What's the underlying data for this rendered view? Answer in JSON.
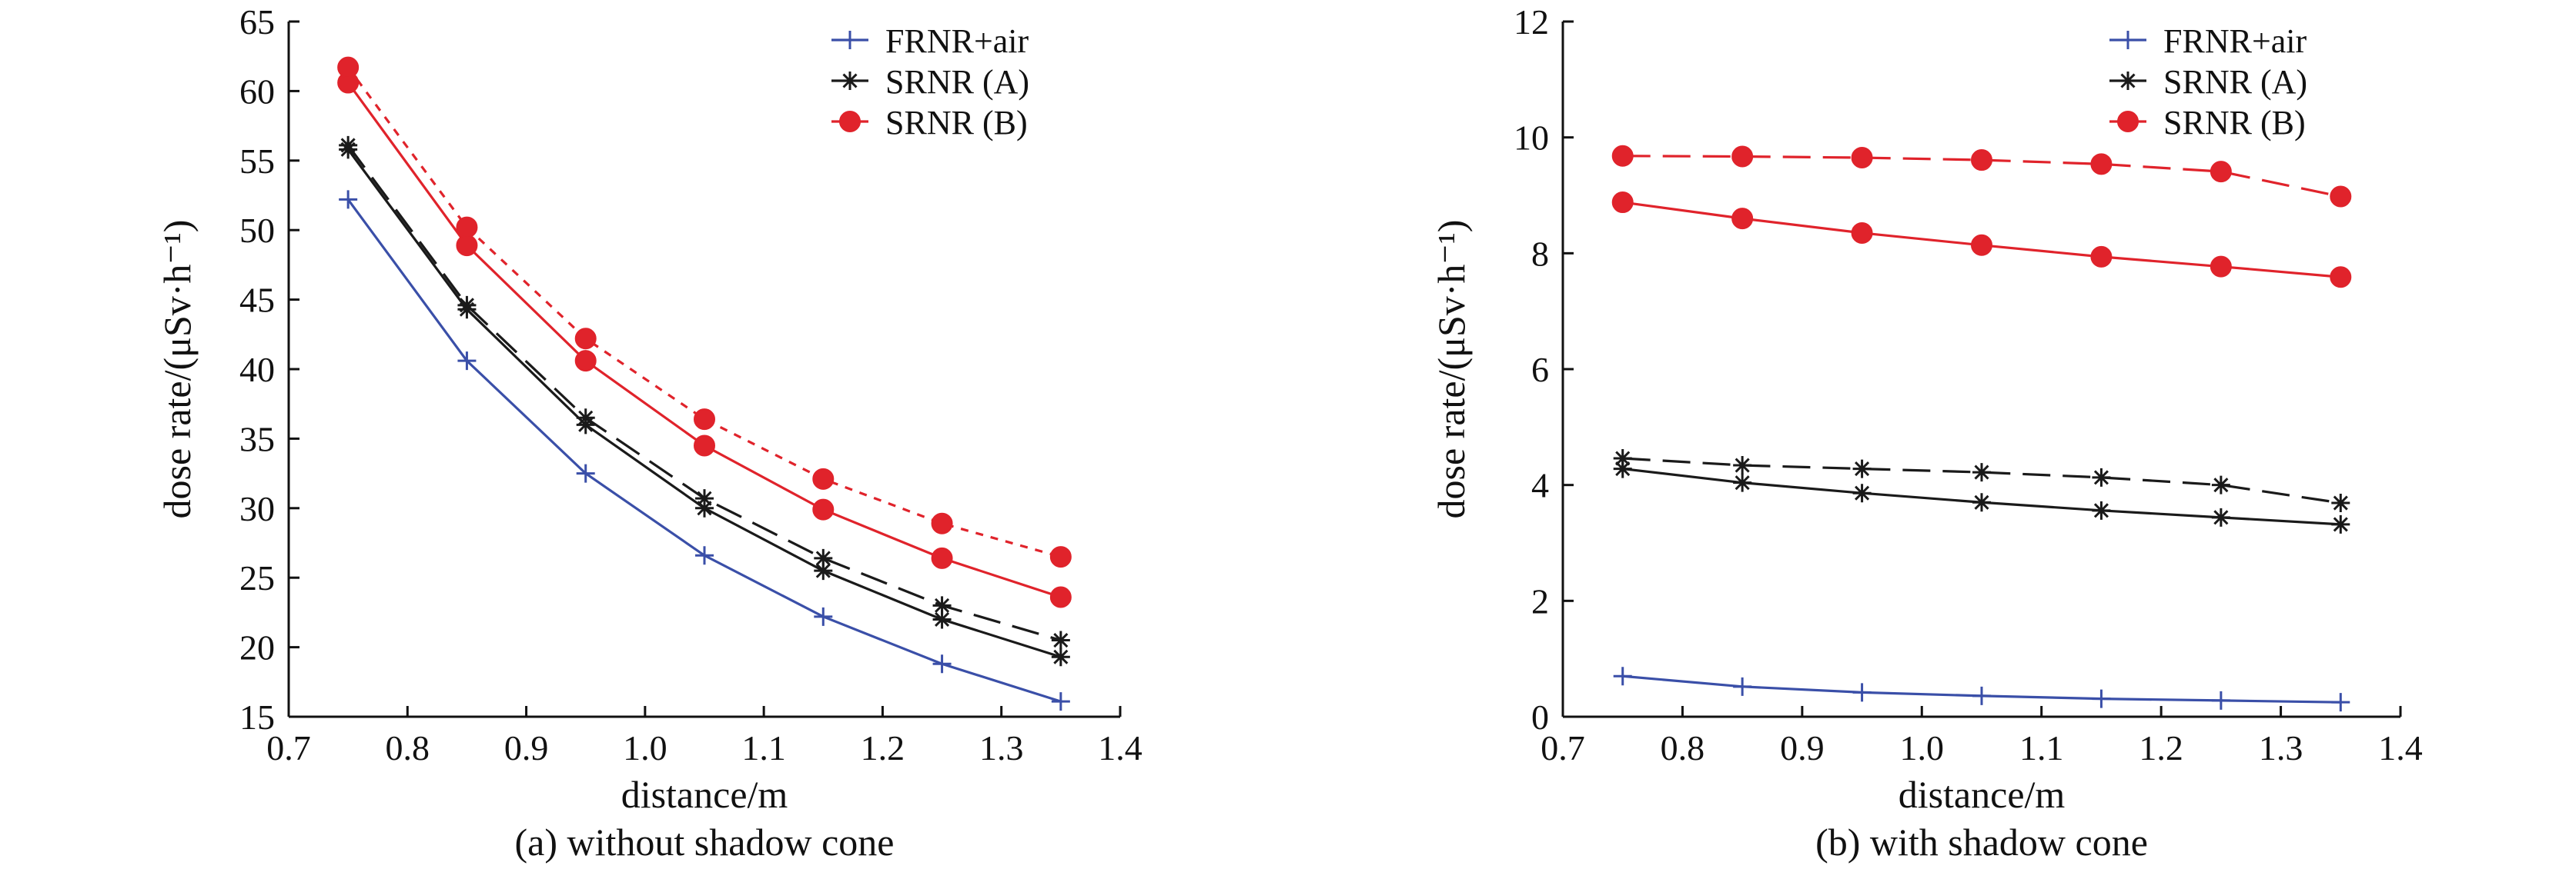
{
  "chart_data": [
    {
      "type": "line",
      "caption": "(a) without shadow cone",
      "xlabel": "distance/m",
      "ylabel": "dose rate/(μSv·h⁻¹)",
      "xlim": [
        0.7,
        1.4
      ],
      "ylim": [
        15,
        65
      ],
      "xticks": [
        "0.7",
        "0.8",
        "0.9",
        "1.0",
        "1.1",
        "1.2",
        "1.3",
        "1.4"
      ],
      "yticks": [
        "15",
        "20",
        "25",
        "30",
        "35",
        "40",
        "45",
        "50",
        "55",
        "60",
        "65"
      ],
      "legend_position": "top-right",
      "x": [
        0.75,
        0.85,
        0.95,
        1.05,
        1.15,
        1.25,
        1.35
      ],
      "series": [
        {
          "name": "FRNR+air",
          "style": "solid",
          "marker": "plus",
          "color": "#3a4fa8",
          "values": [
            52.2,
            40.6,
            32.5,
            26.6,
            22.2,
            18.8,
            16.1
          ],
          "legend": true
        },
        {
          "name": "SRNR (A)",
          "style": "solid",
          "marker": "asterisk",
          "color": "#1a1a1a",
          "values": [
            55.8,
            44.3,
            36.0,
            30.0,
            25.5,
            22.0,
            19.3
          ],
          "legend": true
        },
        {
          "name": "SRNR (A)",
          "style": "dashed",
          "marker": "asterisk",
          "color": "#1a1a1a",
          "values": [
            56.1,
            44.6,
            36.5,
            30.7,
            26.4,
            23.0,
            20.5
          ],
          "legend": false
        },
        {
          "name": "SRNR (B)",
          "style": "solid",
          "marker": "circle",
          "color": "#e0232b",
          "values": [
            60.6,
            48.9,
            40.6,
            34.5,
            29.9,
            26.4,
            23.6
          ],
          "legend": true
        },
        {
          "name": "SRNR (B)",
          "style": "dashed",
          "marker": "circle",
          "color": "#e0232b",
          "values": [
            61.7,
            50.2,
            42.2,
            36.4,
            32.1,
            28.9,
            26.5
          ],
          "legend": false
        }
      ]
    },
    {
      "type": "line",
      "caption": "(b) with shadow cone",
      "xlabel": "distance/m",
      "ylabel": "dose rate/(μSv·h⁻¹)",
      "xlim": [
        0.7,
        1.4
      ],
      "ylim": [
        0,
        12
      ],
      "xticks": [
        "0.7",
        "0.8",
        "0.9",
        "1.0",
        "1.1",
        "1.2",
        "1.3",
        "1.4"
      ],
      "yticks": [
        "0",
        "2",
        "4",
        "6",
        "8",
        "10",
        "12"
      ],
      "legend_position": "top-right",
      "x": [
        0.75,
        0.85,
        0.95,
        1.05,
        1.15,
        1.25,
        1.35
      ],
      "series": [
        {
          "name": "FRNR+air",
          "style": "solid",
          "marker": "plus",
          "color": "#3a4fa8",
          "values": [
            0.7,
            0.52,
            0.42,
            0.36,
            0.31,
            0.28,
            0.25
          ],
          "legend": true
        },
        {
          "name": "SRNR (A)",
          "style": "solid",
          "marker": "asterisk",
          "color": "#1a1a1a",
          "values": [
            4.28,
            4.04,
            3.86,
            3.7,
            3.56,
            3.44,
            3.32
          ],
          "legend": true
        },
        {
          "name": "SRNR (A)",
          "style": "dashed",
          "marker": "asterisk",
          "color": "#1a1a1a",
          "values": [
            4.46,
            4.34,
            4.28,
            4.22,
            4.13,
            4.0,
            3.69
          ],
          "legend": false
        },
        {
          "name": "SRNR (B)",
          "style": "solid",
          "marker": "circle",
          "color": "#e0232b",
          "values": [
            8.88,
            8.6,
            8.35,
            8.14,
            7.94,
            7.77,
            7.59
          ],
          "legend": true
        },
        {
          "name": "SRNR (B)",
          "style": "dashed",
          "marker": "circle",
          "color": "#e0232b",
          "values": [
            9.68,
            9.67,
            9.65,
            9.61,
            9.54,
            9.41,
            8.98
          ],
          "legend": false
        }
      ]
    }
  ]
}
